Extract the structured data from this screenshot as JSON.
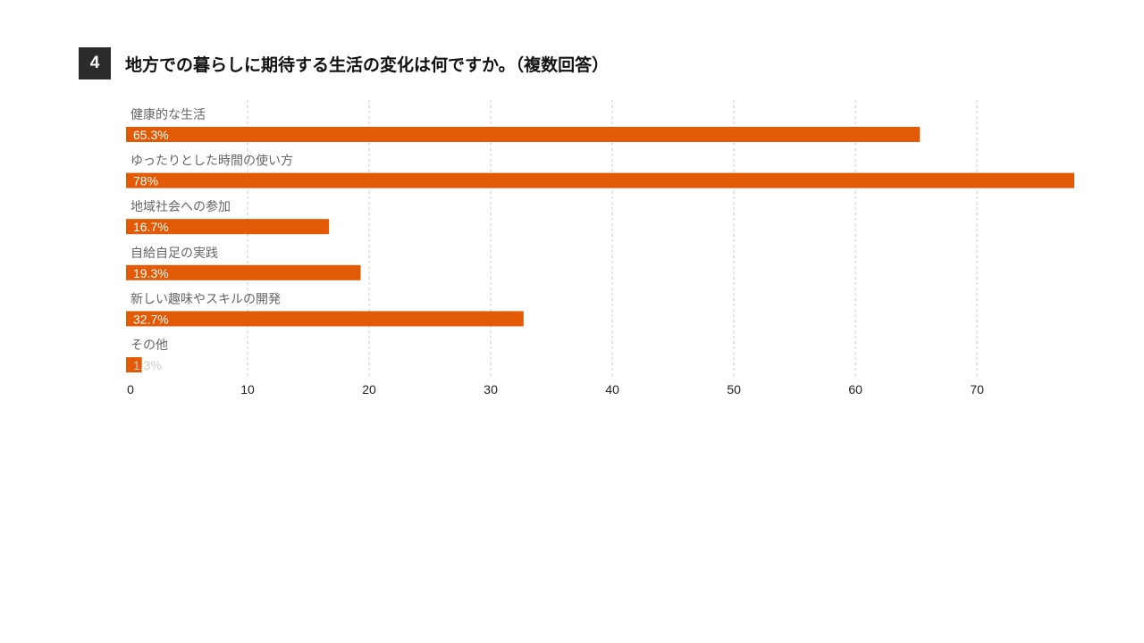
{
  "question": {
    "number": "4",
    "title": "地方での暮らしに期待する生活の変化は何ですか。（複数回答）"
  },
  "chart_data": {
    "type": "bar",
    "orientation": "horizontal",
    "categories": [
      "健康的な生活",
      "ゆったりとした時間の使い方",
      "地域社会への参加",
      "自給自足の実践",
      "新しい趣味やスキルの開発",
      "その他"
    ],
    "values": [
      65.3,
      78,
      16.7,
      19.3,
      32.7,
      1.3
    ],
    "value_labels": [
      "65.3%",
      "78%",
      "16.7%",
      "19.3%",
      "32.7%",
      "1.3%"
    ],
    "xticks": [
      "0",
      "10",
      "20",
      "30",
      "40",
      "50",
      "60",
      "70"
    ],
    "xlim": [
      0,
      78
    ],
    "grid": "vertical dashed",
    "bar_color": "#e25a05",
    "grid_color": "#c8c8c8"
  }
}
